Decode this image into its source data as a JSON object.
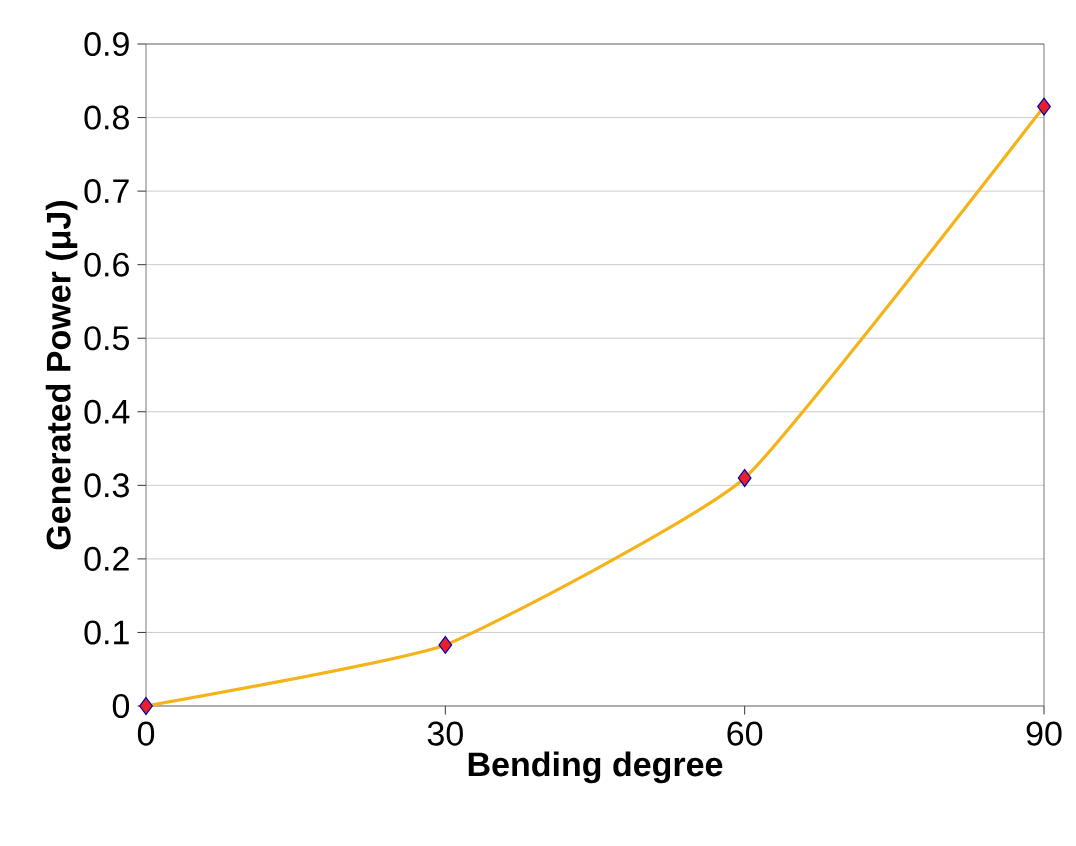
{
  "chart_data": {
    "type": "line",
    "xlabel": "Bending degree",
    "ylabel": "Generated Power (μJ)",
    "x": [
      0,
      30,
      60,
      90
    ],
    "series": [
      {
        "color": "#f5b31a",
        "colors": [
          "#e8202a",
          "#e8202a",
          "#e8202a",
          "#e8202a"
        ],
        "values": [
          0,
          0.083,
          0.31,
          0.815
        ]
      }
    ],
    "xlim": [
      0,
      90
    ],
    "xticks": [
      0,
      30,
      60,
      90
    ],
    "ylim": [
      0,
      0.9
    ],
    "yticks": [
      0,
      0.1,
      0.2,
      0.3,
      0.4,
      0.5,
      0.6,
      0.7,
      0.8,
      0.9
    ],
    "grid": "y",
    "marker": "diamond",
    "line_style": "solid"
  }
}
